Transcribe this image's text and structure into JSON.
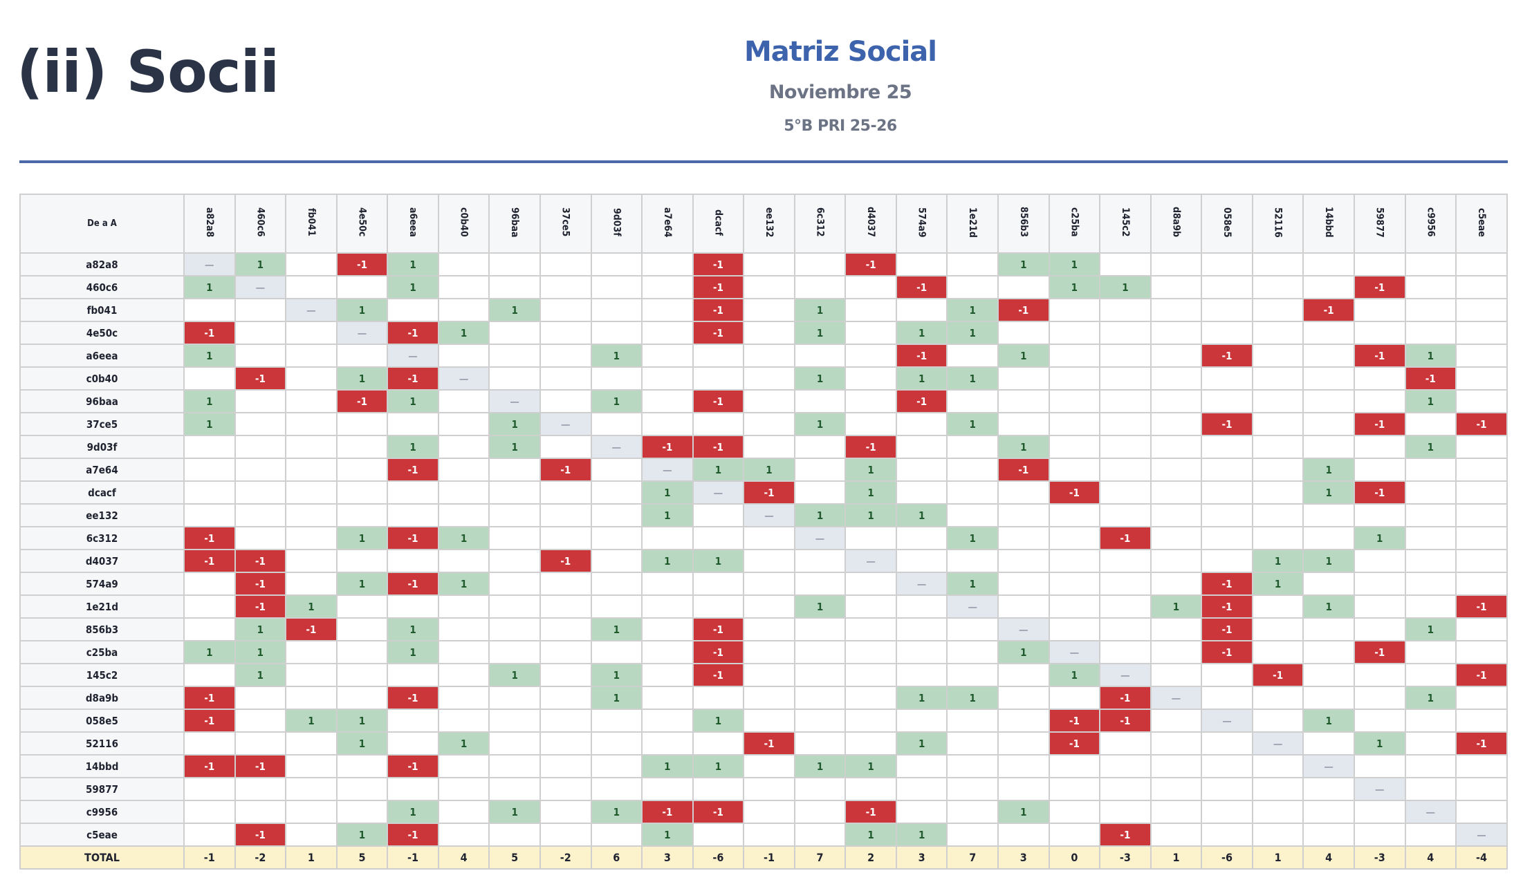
{
  "page": {
    "title": "(ii) Socii",
    "heading": "Matriz Social",
    "subheading": "Noviembre 25",
    "group": "5°B PRI 25-26"
  },
  "colors": {
    "positive_bg": "#b9d8c1",
    "positive_text": "#1f5a2c",
    "negative_bg": "#cb363a",
    "negative_text": "#ffffff",
    "diagonal_bg": "#e3e7ee",
    "total_bg": "#fcf2cc",
    "heading": "#3e63ad",
    "rule": "#4a67a8"
  },
  "table": {
    "corner_label": "De a A",
    "total_label": "TOTAL",
    "diagonal_symbol": "—",
    "columns": [
      "a82a8",
      "460c6",
      "fb041",
      "4e50c",
      "a6eea",
      "c0b40",
      "96baa",
      "37ce5",
      "9d03f",
      "a7e64",
      "dcacf",
      "ee132",
      "6c312",
      "d4037",
      "574a9",
      "1e21d",
      "856b3",
      "c25ba",
      "145c2",
      "d8a9b",
      "058e5",
      "52116",
      "14bbd",
      "59877",
      "c9956",
      "c5eae"
    ],
    "rows": [
      {
        "name": "a82a8",
        "cells": {
          "0": "d",
          "1": 1,
          "3": -1,
          "4": 1,
          "10": -1,
          "13": -1,
          "16": 1,
          "17": 1
        }
      },
      {
        "name": "460c6",
        "cells": {
          "0": 1,
          "1": "d",
          "4": 1,
          "10": -1,
          "14": -1,
          "17": 1,
          "18": 1,
          "23": -1
        }
      },
      {
        "name": "fb041",
        "cells": {
          "2": "d",
          "3": 1,
          "6": 1,
          "10": -1,
          "12": 1,
          "15": 1,
          "16": -1,
          "22": -1
        }
      },
      {
        "name": "4e50c",
        "cells": {
          "0": -1,
          "3": "d",
          "4": -1,
          "5": 1,
          "10": -1,
          "12": 1,
          "14": 1,
          "15": 1
        }
      },
      {
        "name": "a6eea",
        "cells": {
          "0": 1,
          "4": "d",
          "8": 1,
          "14": -1,
          "16": 1,
          "20": -1,
          "23": -1,
          "24": 1
        }
      },
      {
        "name": "c0b40",
        "cells": {
          "1": -1,
          "3": 1,
          "4": -1,
          "5": "d",
          "12": 1,
          "14": 1,
          "15": 1,
          "24": -1
        }
      },
      {
        "name": "96baa",
        "cells": {
          "0": 1,
          "3": -1,
          "4": 1,
          "6": "d",
          "8": 1,
          "10": -1,
          "14": -1,
          "24": 1
        }
      },
      {
        "name": "37ce5",
        "cells": {
          "0": 1,
          "6": 1,
          "7": "d",
          "12": 1,
          "15": 1,
          "20": -1,
          "23": -1,
          "25": -1
        }
      },
      {
        "name": "9d03f",
        "cells": {
          "4": 1,
          "6": 1,
          "8": "d",
          "9": -1,
          "10": -1,
          "13": -1,
          "16": 1,
          "24": 1
        }
      },
      {
        "name": "a7e64",
        "cells": {
          "4": -1,
          "7": -1,
          "9": "d",
          "10": 1,
          "11": 1,
          "13": 1,
          "16": -1,
          "22": 1
        }
      },
      {
        "name": "dcacf",
        "cells": {
          "9": 1,
          "10": "d",
          "11": -1,
          "13": 1,
          "17": -1,
          "22": 1,
          "23": -1
        }
      },
      {
        "name": "ee132",
        "cells": {
          "9": 1,
          "11": "d",
          "12": 1,
          "13": 1,
          "14": 1
        }
      },
      {
        "name": "6c312",
        "cells": {
          "0": -1,
          "3": 1,
          "4": -1,
          "5": 1,
          "12": "d",
          "15": 1,
          "18": -1,
          "23": 1
        }
      },
      {
        "name": "d4037",
        "cells": {
          "0": -1,
          "1": -1,
          "7": -1,
          "9": 1,
          "10": 1,
          "13": "d",
          "21": 1,
          "22": 1
        }
      },
      {
        "name": "574a9",
        "cells": {
          "1": -1,
          "3": 1,
          "4": -1,
          "5": 1,
          "14": "d",
          "15": 1,
          "20": -1,
          "21": 1
        }
      },
      {
        "name": "1e21d",
        "cells": {
          "1": -1,
          "2": 1,
          "12": 1,
          "15": "d",
          "19": 1,
          "20": -1,
          "22": 1,
          "25": -1
        }
      },
      {
        "name": "856b3",
        "cells": {
          "1": 1,
          "2": -1,
          "4": 1,
          "8": 1,
          "10": -1,
          "16": "d",
          "20": -1,
          "24": 1
        }
      },
      {
        "name": "c25ba",
        "cells": {
          "0": 1,
          "1": 1,
          "4": 1,
          "10": -1,
          "16": 1,
          "17": "d",
          "20": -1,
          "23": -1
        }
      },
      {
        "name": "145c2",
        "cells": {
          "1": 1,
          "6": 1,
          "8": 1,
          "10": -1,
          "17": 1,
          "18": "d",
          "21": -1,
          "25": -1
        }
      },
      {
        "name": "d8a9b",
        "cells": {
          "0": -1,
          "4": -1,
          "8": 1,
          "14": 1,
          "15": 1,
          "18": -1,
          "19": "d",
          "24": 1
        }
      },
      {
        "name": "058e5",
        "cells": {
          "0": -1,
          "2": 1,
          "3": 1,
          "10": 1,
          "17": -1,
          "18": -1,
          "20": "d",
          "22": 1
        }
      },
      {
        "name": "52116",
        "cells": {
          "3": 1,
          "5": 1,
          "11": -1,
          "14": 1,
          "17": -1,
          "21": "d",
          "23": 1,
          "25": -1
        }
      },
      {
        "name": "14bbd",
        "cells": {
          "0": -1,
          "1": -1,
          "4": -1,
          "9": 1,
          "10": 1,
          "12": 1,
          "13": 1,
          "22": "d"
        }
      },
      {
        "name": "59877",
        "cells": {
          "23": "d"
        }
      },
      {
        "name": "c9956",
        "cells": {
          "4": 1,
          "6": 1,
          "8": 1,
          "9": -1,
          "10": -1,
          "13": -1,
          "16": 1,
          "24": "d"
        }
      },
      {
        "name": "c5eae",
        "cells": {
          "1": -1,
          "3": 1,
          "4": -1,
          "9": 1,
          "13": 1,
          "14": 1,
          "18": -1,
          "25": "d"
        }
      }
    ],
    "totals": [
      -1,
      -2,
      1,
      5,
      -1,
      4,
      5,
      -2,
      6,
      3,
      -6,
      -1,
      7,
      2,
      3,
      7,
      3,
      0,
      -3,
      1,
      -6,
      1,
      4,
      -3,
      4,
      -4
    ]
  }
}
